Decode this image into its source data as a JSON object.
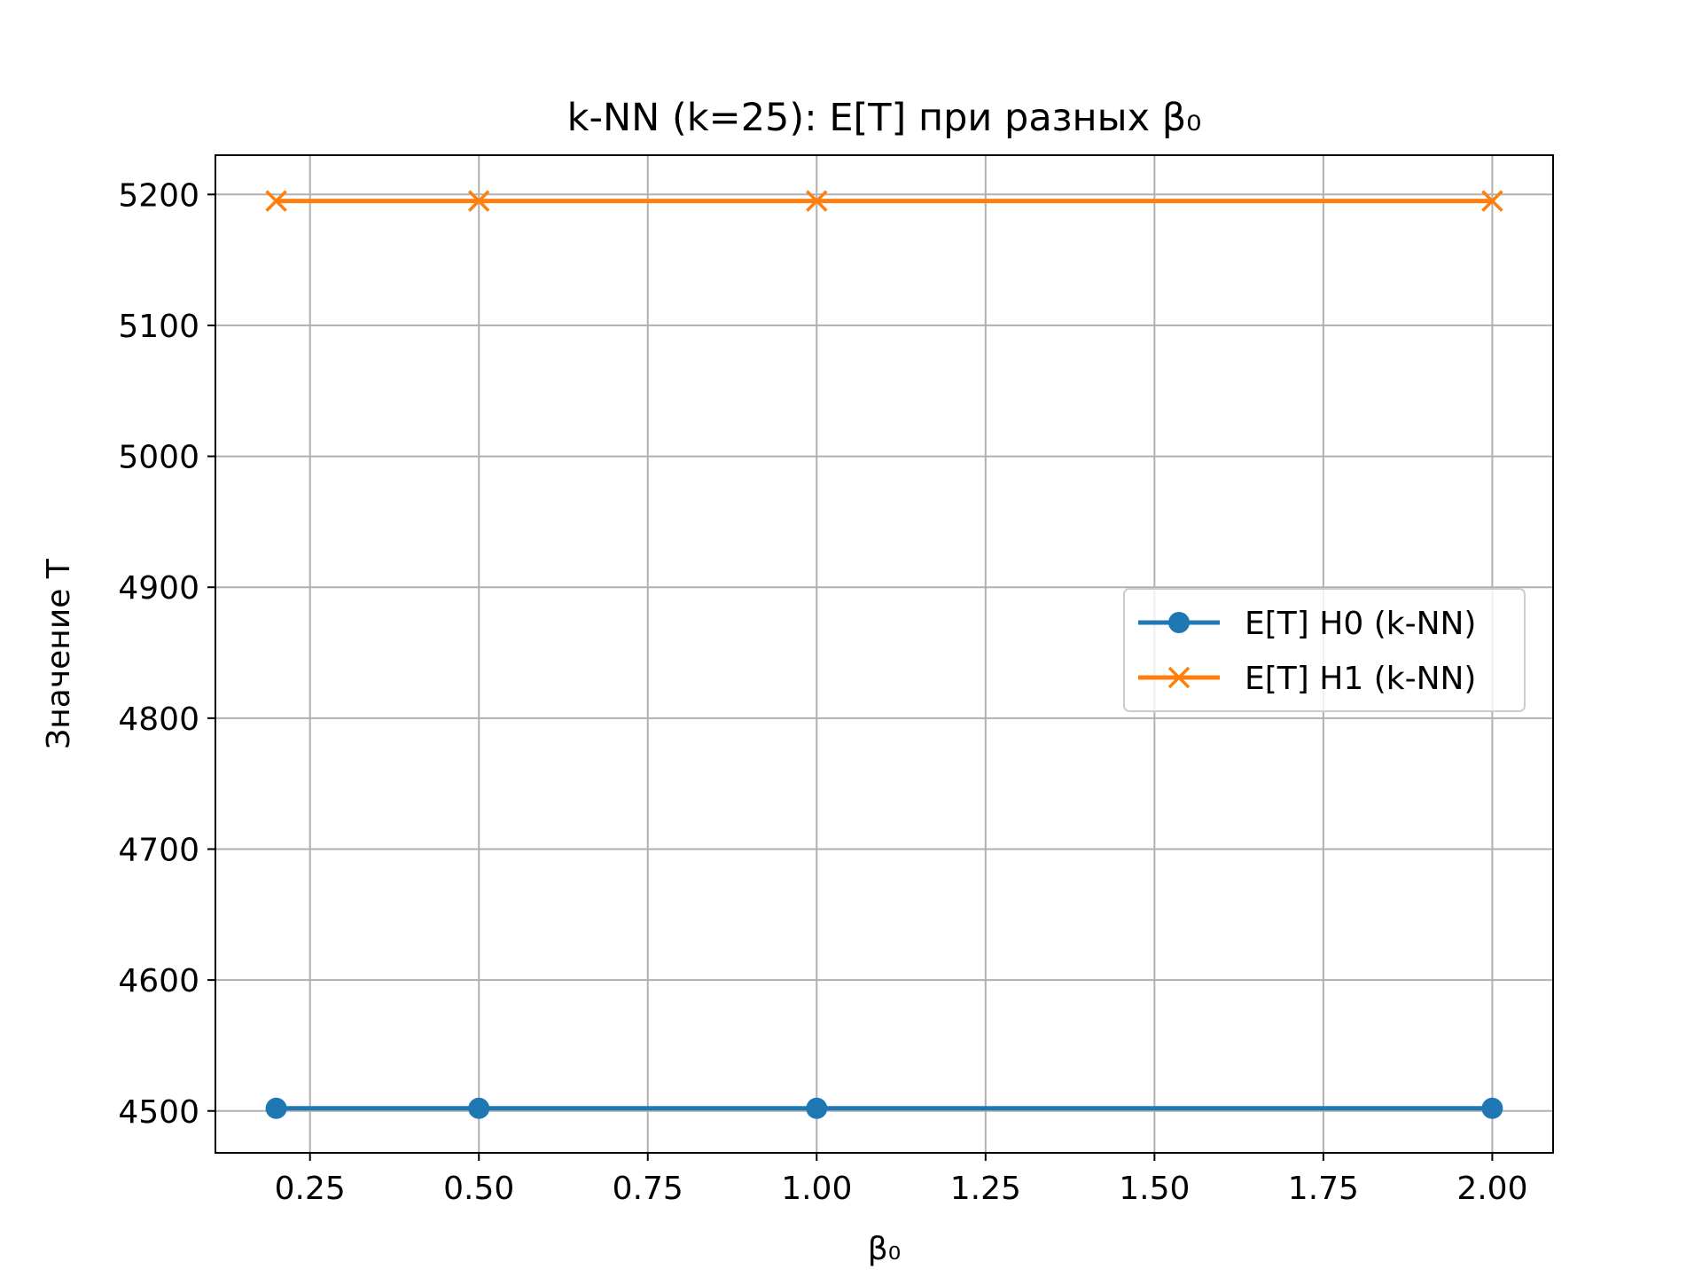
{
  "chart_data": {
    "type": "line",
    "title": "k-NN (k=25): E[T] при разных β₀",
    "xlabel": "β₀",
    "ylabel": "Значение T",
    "xlim": [
      0.11,
      2.09
    ],
    "ylim": [
      4468,
      5230
    ],
    "x_ticks": [
      0.25,
      0.5,
      0.75,
      1.0,
      1.25,
      1.5,
      1.75,
      2.0
    ],
    "x_tick_labels": [
      "0.25",
      "0.50",
      "0.75",
      "1.00",
      "1.25",
      "1.50",
      "1.75",
      "2.00"
    ],
    "y_ticks": [
      4500,
      4600,
      4700,
      4800,
      4900,
      5000,
      5100,
      5200
    ],
    "y_tick_labels": [
      "4500",
      "4600",
      "4700",
      "4800",
      "4900",
      "5000",
      "5100",
      "5200"
    ],
    "grid": true,
    "legend_position": "center-right",
    "series": [
      {
        "name": "E[T] H0 (k-NN)",
        "x": [
          0.2,
          0.5,
          1.0,
          2.0
        ],
        "y": [
          4502,
          4502,
          4502,
          4502
        ],
        "marker": "circle",
        "color": "#1f77b4"
      },
      {
        "name": "E[T] H1 (k-NN)",
        "x": [
          0.2,
          0.5,
          1.0,
          2.0
        ],
        "y": [
          5195,
          5195,
          5195,
          5195
        ],
        "marker": "x",
        "color": "#ff7f0e"
      }
    ]
  }
}
